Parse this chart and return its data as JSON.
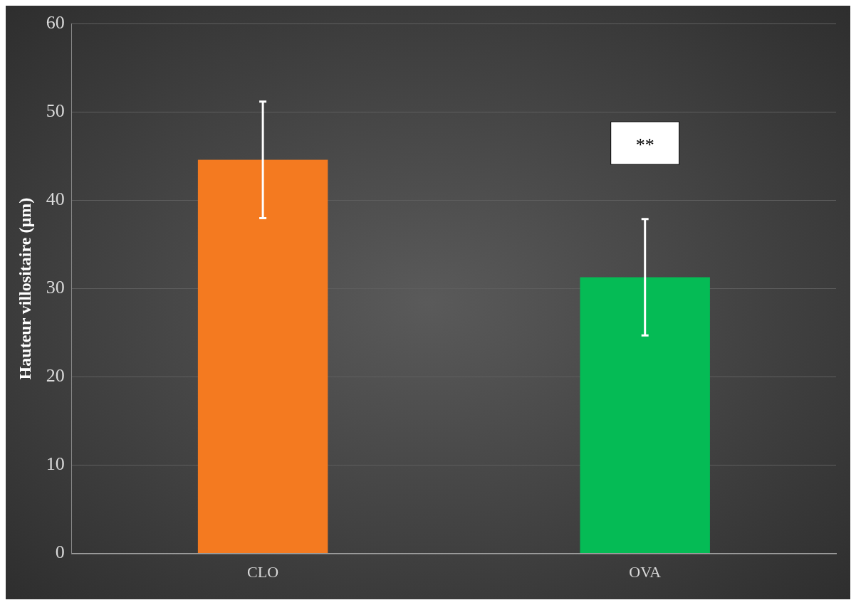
{
  "chart_data": {
    "type": "bar",
    "ylabel": "Hauteur villositaire (µm)",
    "categories": [
      "CLO",
      "OVA"
    ],
    "values": [
      44.6,
      31.3
    ],
    "colors": [
      "#f47a20",
      "#05bb55"
    ],
    "errors": [
      6.6,
      6.6
    ],
    "ylim": [
      0,
      60
    ],
    "yticks": [
      0,
      10,
      20,
      30,
      40,
      50,
      60
    ],
    "grid": "y",
    "legend": false,
    "annotations": [
      "**"
    ]
  }
}
